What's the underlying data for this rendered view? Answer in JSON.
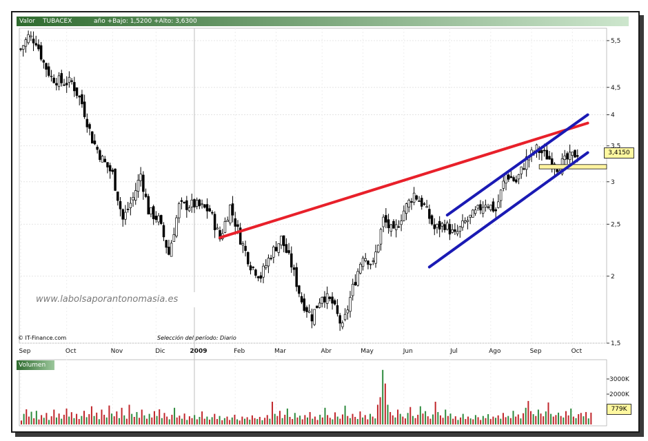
{
  "header": {
    "field_label": "Valor",
    "ticker": "TUBACEX",
    "range_text": "año +Bajo: 1,5200 +Alto: 3,6300"
  },
  "watermark": "www.labolsaporantonomasia.es",
  "credit": "© IT-Finance.com",
  "period_label": "Selección del período: Diario",
  "volume_label": "Volumen",
  "last_price_label": "3,4150",
  "last_volume_label": "779K",
  "colors": {
    "resistance_line": "#e8202a",
    "channel_lines": "#1a1ab4",
    "candle_up": "#ffffff",
    "candle_down": "#000000",
    "volume_up": "#2e8b3e",
    "volume_down": "#c0262b",
    "support_band": "#fff4a0",
    "header_bar": "#2f6b2f"
  },
  "chart_data": [
    {
      "type": "candlestick",
      "title": "TUBACEX",
      "y_scale": "log",
      "ylim": [
        1.5,
        5.8
      ],
      "y_ticks": [
        "5,5",
        "4,5",
        "4",
        "3,5",
        "3",
        "2,5",
        "2",
        "1,5"
      ],
      "x_ticks": [
        "Sep",
        "Oct",
        "Nov",
        "Dic",
        "2009",
        "Feb",
        "Mar",
        "Abr",
        "May",
        "Jun",
        "Jul",
        "Ago",
        "Sep",
        "Oct"
      ],
      "grid": true,
      "close_path": [
        {
          "x": 0,
          "y": 5.3
        },
        {
          "x": 3,
          "y": 5.6
        },
        {
          "x": 6,
          "y": 5.5
        },
        {
          "x": 9,
          "y": 5.0
        },
        {
          "x": 12,
          "y": 4.7
        },
        {
          "x": 16,
          "y": 4.6
        },
        {
          "x": 20,
          "y": 4.6
        },
        {
          "x": 24,
          "y": 4.2
        },
        {
          "x": 28,
          "y": 3.6
        },
        {
          "x": 32,
          "y": 3.3
        },
        {
          "x": 36,
          "y": 3.1
        },
        {
          "x": 40,
          "y": 2.55
        },
        {
          "x": 44,
          "y": 2.8
        },
        {
          "x": 47,
          "y": 3.1
        },
        {
          "x": 50,
          "y": 2.65
        },
        {
          "x": 54,
          "y": 2.55
        },
        {
          "x": 58,
          "y": 2.2
        },
        {
          "x": 62,
          "y": 2.7
        },
        {
          "x": 68,
          "y": 2.72
        },
        {
          "x": 74,
          "y": 2.65
        },
        {
          "x": 78,
          "y": 2.35
        },
        {
          "x": 82,
          "y": 2.7
        },
        {
          "x": 86,
          "y": 2.35
        },
        {
          "x": 90,
          "y": 2.1
        },
        {
          "x": 94,
          "y": 2.0
        },
        {
          "x": 98,
          "y": 2.2
        },
        {
          "x": 102,
          "y": 2.35
        },
        {
          "x": 106,
          "y": 2.1
        },
        {
          "x": 110,
          "y": 1.8
        },
        {
          "x": 114,
          "y": 1.68
        },
        {
          "x": 118,
          "y": 1.85
        },
        {
          "x": 122,
          "y": 1.78
        },
        {
          "x": 126,
          "y": 1.6
        },
        {
          "x": 130,
          "y": 1.9
        },
        {
          "x": 134,
          "y": 2.2
        },
        {
          "x": 138,
          "y": 2.1
        },
        {
          "x": 142,
          "y": 2.55
        },
        {
          "x": 146,
          "y": 2.4
        },
        {
          "x": 150,
          "y": 2.65
        },
        {
          "x": 154,
          "y": 2.85
        },
        {
          "x": 158,
          "y": 2.7
        },
        {
          "x": 162,
          "y": 2.45
        },
        {
          "x": 166,
          "y": 2.5
        },
        {
          "x": 170,
          "y": 2.38
        },
        {
          "x": 174,
          "y": 2.52
        },
        {
          "x": 178,
          "y": 2.62
        },
        {
          "x": 182,
          "y": 2.75
        },
        {
          "x": 186,
          "y": 2.65
        },
        {
          "x": 190,
          "y": 3.1
        },
        {
          "x": 194,
          "y": 3.0
        },
        {
          "x": 198,
          "y": 3.3
        },
        {
          "x": 202,
          "y": 3.45
        },
        {
          "x": 206,
          "y": 3.35
        },
        {
          "x": 210,
          "y": 3.2
        },
        {
          "x": 214,
          "y": 3.3
        },
        {
          "x": 218,
          "y": 3.4
        }
      ],
      "last_close": 3.415,
      "support_band": [
        3.17,
        3.23
      ],
      "trendlines": [
        {
          "role": "resistance",
          "from": {
            "x": 78,
            "y": 2.36
          },
          "to": {
            "x": 222,
            "y": 3.86
          }
        },
        {
          "role": "channel-upper",
          "from": {
            "x": 167,
            "y": 2.6
          },
          "to": {
            "x": 222,
            "y": 4.0
          }
        },
        {
          "role": "channel-lower",
          "from": {
            "x": 160,
            "y": 2.08
          },
          "to": {
            "x": 222,
            "y": 3.4
          }
        }
      ]
    },
    {
      "type": "bar",
      "title": "Volumen",
      "ylim": [
        0,
        4000000
      ],
      "y_ticks": [
        "3000K",
        "2000K"
      ],
      "last_value": 779000,
      "values": [
        260000,
        700000,
        1000000,
        520000,
        840000,
        410000,
        900000,
        330000,
        620000,
        440000,
        760000,
        300000,
        540000,
        980000,
        460000,
        720000,
        380000,
        640000,
        1050000,
        520000,
        810000,
        420000,
        700000,
        360000,
        560000,
        900000,
        480000,
        680000,
        1200000,
        560000,
        780000,
        350000,
        980000,
        640000,
        460000,
        1250000,
        720000,
        540000,
        860000,
        420000,
        1100000,
        600000,
        380000,
        1300000,
        700000,
        500000,
        820000,
        440000,
        980000,
        600000,
        380000,
        700000,
        460000,
        880000,
        560000,
        1000000,
        420000,
        760000,
        520000,
        340000,
        640000,
        1100000,
        460000,
        580000,
        380000,
        720000,
        300000,
        540000,
        420000,
        620000,
        340000,
        500000,
        860000,
        380000,
        520000,
        320000,
        480000,
        700000,
        360000,
        560000,
        280000,
        420000,
        520000,
        300000,
        460000,
        640000,
        340000,
        260000,
        520000,
        380000,
        480000,
        320000,
        600000,
        420000,
        360000,
        500000,
        280000,
        440000,
        620000,
        380000,
        1500000,
        700000,
        560000,
        900000,
        420000,
        640000,
        1050000,
        500000,
        360000,
        760000,
        460000,
        580000,
        340000,
        620000,
        460000,
        820000,
        380000,
        520000,
        300000,
        640000,
        460000,
        1100000,
        620000,
        440000,
        340000,
        800000,
        520000,
        380000,
        660000,
        1240000,
        560000,
        420000,
        700000,
        500000,
        360000,
        860000,
        460000,
        620000,
        340000,
        700000,
        520000,
        400000,
        1300000,
        1800000,
        3600000,
        2700000,
        1300000,
        820000,
        600000,
        460000,
        980000,
        700000,
        520000,
        400000,
        760000,
        1150000,
        560000,
        420000,
        640000,
        1200000,
        720000,
        880000,
        540000,
        380000,
        660000,
        1500000,
        820000,
        600000,
        440000,
        980000,
        560000,
        720000,
        380000,
        540000,
        300000,
        460000,
        700000,
        360000,
        520000,
        400000,
        340000,
        620000,
        480000,
        300000,
        560000,
        420000,
        680000,
        360000,
        520000,
        440000,
        600000,
        380000,
        760000,
        480000,
        560000,
        420000,
        900000,
        520000,
        660000,
        400000,
        740000,
        1100000,
        1550000,
        880000,
        680000,
        560000,
        980000,
        720000,
        540000,
        860000,
        1450000,
        700000,
        520000,
        620000,
        780000,
        560000,
        460000,
        880000,
        600000,
        1050000,
        520000,
        420000,
        680000,
        760000,
        540000,
        820000,
        400000,
        779000
      ]
    }
  ]
}
